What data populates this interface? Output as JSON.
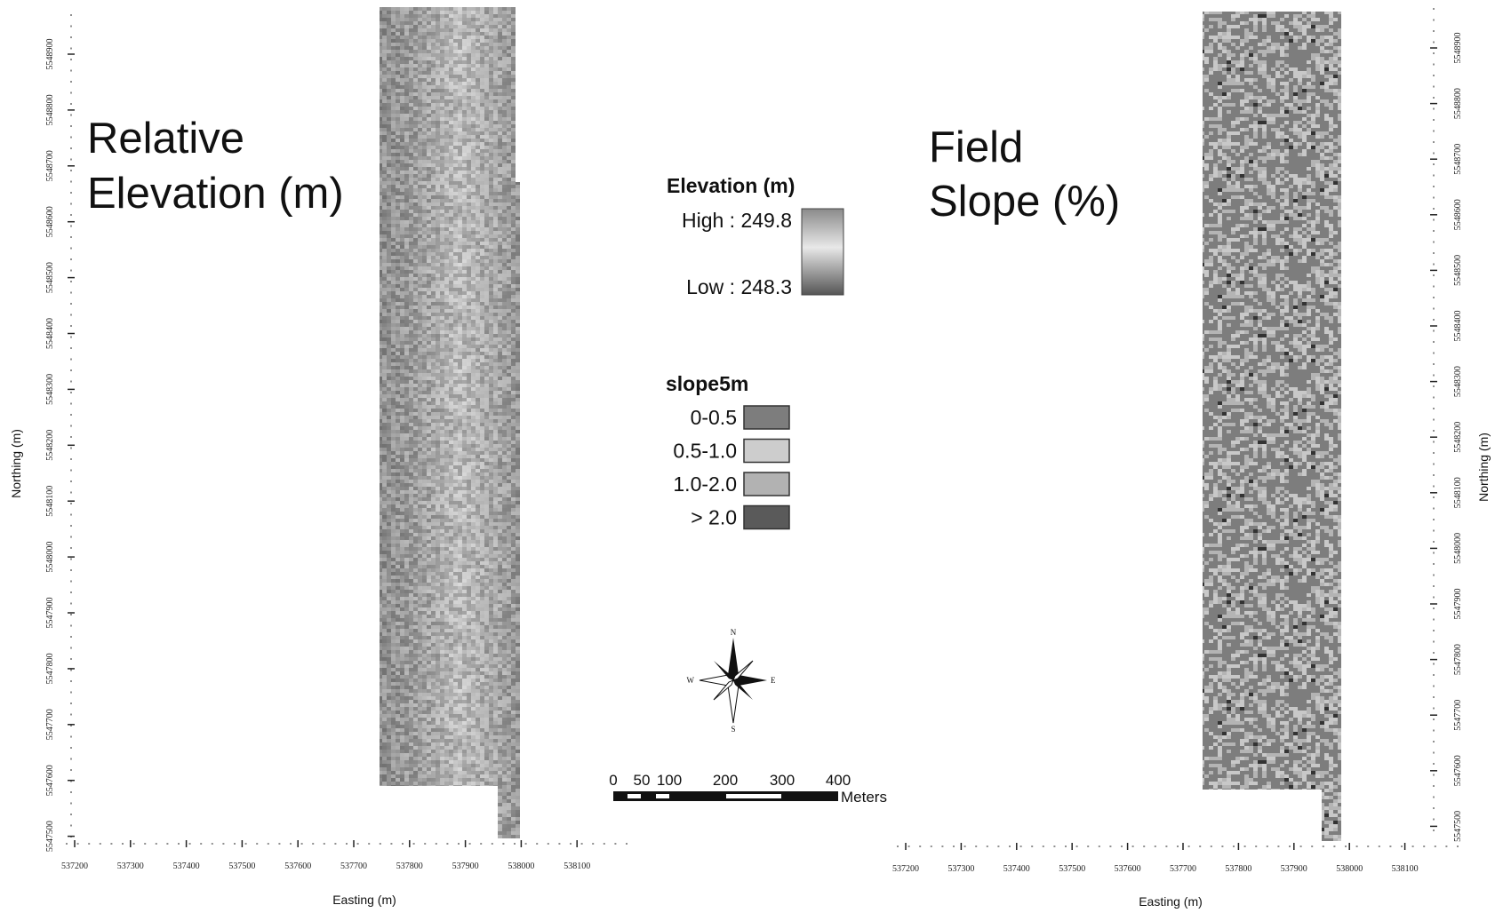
{
  "left_map": {
    "title_lines": [
      "Relative",
      "Elevation (m)"
    ],
    "x_label": "Easting (m)",
    "y_label": "Northing (m)",
    "x_ticks": [
      537200,
      537300,
      537400,
      537500,
      537600,
      537700,
      537800,
      537900,
      538000,
      538100
    ],
    "y_ticks": [
      5548900,
      5548800,
      5548700,
      5548600,
      5548500,
      5548400,
      5548300,
      5548200,
      5548100,
      5548000,
      5547900,
      5547800,
      5547700,
      5547600,
      5547500
    ]
  },
  "right_map": {
    "title_lines": [
      "Field",
      "Slope (%)"
    ],
    "x_label": "Easting (m)",
    "y_label": "Northing (m)",
    "x_ticks": [
      537200,
      537300,
      537400,
      537500,
      537600,
      537700,
      537800,
      537900,
      538000,
      538100
    ],
    "y_ticks": [
      5548900,
      5548800,
      5548700,
      5548600,
      5548500,
      5548400,
      5548300,
      5548200,
      5548100,
      5548000,
      5547900,
      5547800,
      5547700,
      5547600,
      5547500
    ]
  },
  "elevation_legend": {
    "title": "Elevation (m)",
    "high": "High : 249.8",
    "low": "Low : 248.3"
  },
  "slope_legend": {
    "title": "slope5m",
    "classes": [
      {
        "label": "0-0.5",
        "color": "#7d7d7d"
      },
      {
        "label": "0.5-1.0",
        "color": "#cdcdcd"
      },
      {
        "label": "1.0-2.0",
        "color": "#b2b2b2"
      },
      {
        "label": "> 2.0",
        "color": "#5a5a5a"
      }
    ]
  },
  "scale_bar": {
    "labels": [
      "0",
      "50",
      "100",
      "200",
      "300",
      "400"
    ],
    "unit": "Meters"
  },
  "compass": {
    "n": "N",
    "s": "S",
    "e": "E",
    "w": "W"
  }
}
